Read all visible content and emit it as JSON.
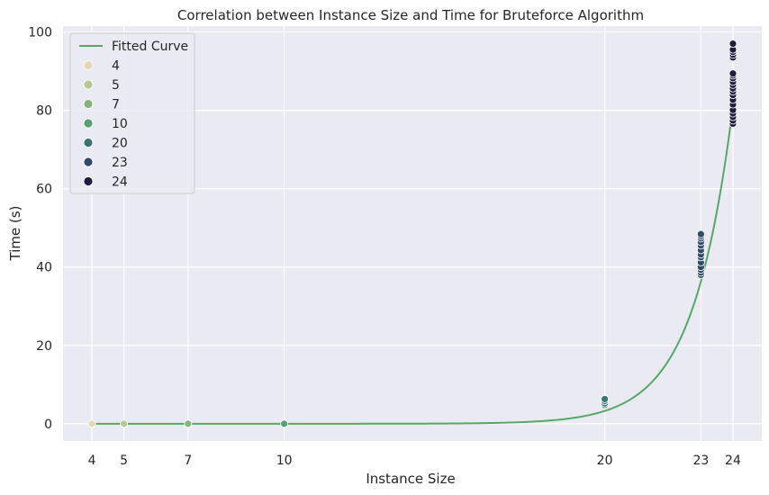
{
  "chart_data": {
    "type": "scatter",
    "title": "Correlation between Instance Size and Time for Bruteforce Algorithm",
    "xlabel": "Instance Size",
    "ylabel": "Time (s)",
    "xlim": [
      3.1,
      24.9
    ],
    "ylim": [
      -4.4,
      101.5
    ],
    "x_ticks": [
      4,
      5,
      7,
      10,
      20,
      23,
      24
    ],
    "y_ticks": [
      0,
      20,
      40,
      60,
      80,
      100
    ],
    "grid": true,
    "background_color": "#eaeaf2",
    "legend_position": "top-left",
    "series": [
      {
        "name": "4",
        "color": "#e4d7b6",
        "x": [
          4,
          4,
          4
        ],
        "y": [
          0.0,
          0.0,
          0.0
        ]
      },
      {
        "name": "5",
        "color": "#b7c796",
        "x": [
          5,
          5,
          5
        ],
        "y": [
          0.0,
          0.0,
          0.0
        ]
      },
      {
        "name": "7",
        "color": "#86b47d",
        "x": [
          7,
          7,
          7
        ],
        "y": [
          0.0,
          0.0,
          0.0
        ]
      },
      {
        "name": "10",
        "color": "#5a9e75",
        "x": [
          10,
          10,
          10
        ],
        "y": [
          0.0,
          0.0,
          0.0
        ]
      },
      {
        "name": "20",
        "color": "#3d7374",
        "x": [
          20,
          20,
          20,
          20
        ],
        "y": [
          4.8,
          5.2,
          5.8,
          6.3
        ]
      },
      {
        "name": "23",
        "color": "#2e4a6a",
        "x": [
          23,
          23,
          23,
          23,
          23,
          23,
          23,
          23,
          23,
          23,
          23,
          23,
          23
        ],
        "y": [
          38.0,
          38.6,
          39.3,
          40.0,
          41.2,
          42.5,
          43.2,
          44.3,
          45.5,
          46.4,
          47.3,
          47.9,
          48.4
        ]
      },
      {
        "name": "24",
        "color": "#1f1d3b",
        "x": [
          24,
          24,
          24,
          24,
          24,
          24,
          24,
          24,
          24,
          24,
          24,
          24,
          24,
          24,
          24,
          24,
          24,
          24,
          24,
          24
        ],
        "y": [
          76.6,
          77.4,
          78.3,
          79.2,
          80.1,
          81.5,
          82.7,
          83.9,
          84.8,
          85.6,
          86.5,
          87.3,
          88.2,
          88.9,
          89.4,
          93.5,
          94.2,
          94.9,
          95.5,
          97.0
        ]
      }
    ],
    "fitted_curve": {
      "name": "Fitted Curve",
      "color": "#55a868",
      "model": "exponential",
      "a": 3.5e-07,
      "b": 0.8025
    }
  }
}
